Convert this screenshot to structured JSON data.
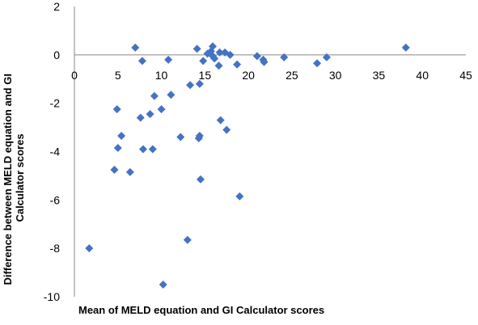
{
  "chart_data": {
    "type": "scatter",
    "xlabel": "Mean of MELD equation and GI Calculator scores",
    "ylabel": "Difference between MELD equation and GI Calculator scores",
    "xlim": [
      0,
      45
    ],
    "ylim": [
      -10,
      2
    ],
    "x_ticks": [
      "0",
      "5",
      "10",
      "15",
      "20",
      "25",
      "30",
      "35",
      "40",
      "45"
    ],
    "y_ticks": [
      "2",
      "0",
      "-2",
      "-4",
      "-6",
      "-8",
      "-10"
    ],
    "grid": false,
    "legend": "none",
    "marker": "diamond",
    "color": "#4472C4",
    "series": [
      {
        "points": [
          [
            7,
            0.3
          ],
          [
            7.8,
            -0.25
          ],
          [
            10.8,
            -0.2
          ],
          [
            14.1,
            0.25
          ],
          [
            14.8,
            -0.25
          ],
          [
            15.3,
            0.05
          ],
          [
            15.9,
            0.35
          ],
          [
            15.7,
            0.15
          ],
          [
            15.9,
            -0.05
          ],
          [
            16.1,
            -0.15
          ],
          [
            16.7,
            0.1
          ],
          [
            17.3,
            0.1
          ],
          [
            17.9,
            0.0
          ],
          [
            16.6,
            -0.45
          ],
          [
            18.7,
            -0.4
          ],
          [
            21.0,
            -0.05
          ],
          [
            21.7,
            -0.2
          ],
          [
            21.8,
            -0.3
          ],
          [
            24.1,
            -0.1
          ],
          [
            27.9,
            -0.35
          ],
          [
            29.0,
            -0.1
          ],
          [
            38.1,
            0.3
          ],
          [
            14.4,
            -1.2
          ],
          [
            13.3,
            -1.25
          ],
          [
            11.1,
            -1.65
          ],
          [
            9.2,
            -1.7
          ],
          [
            10.0,
            -2.25
          ],
          [
            8.7,
            -2.45
          ],
          [
            7.6,
            -2.6
          ],
          [
            4.9,
            -2.25
          ],
          [
            5.4,
            -3.35
          ],
          [
            5.0,
            -3.85
          ],
          [
            7.9,
            -3.9
          ],
          [
            9.0,
            -3.9
          ],
          [
            12.2,
            -3.4
          ],
          [
            14.3,
            -3.45
          ],
          [
            14.4,
            -3.35
          ],
          [
            16.8,
            -2.7
          ],
          [
            17.5,
            -3.1
          ],
          [
            4.6,
            -4.75
          ],
          [
            6.4,
            -4.85
          ],
          [
            14.5,
            -5.15
          ],
          [
            19.0,
            -5.85
          ],
          [
            1.7,
            -8.0
          ],
          [
            13.0,
            -7.65
          ],
          [
            10.2,
            -9.5
          ]
        ]
      }
    ]
  }
}
